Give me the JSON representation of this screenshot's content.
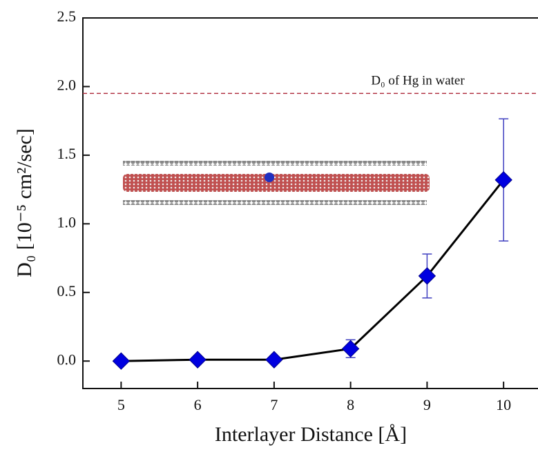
{
  "chart_data": {
    "type": "line",
    "x_label": "Interlayer Distance [Å]",
    "y_label": "D₀ [10⁻⁵ cm²/sec]",
    "x": [
      5,
      6,
      7,
      8,
      9,
      10
    ],
    "series": [
      {
        "color": "#0000e0",
        "values": [
          0.0,
          0.01,
          0.01,
          0.09,
          0.62,
          1.32
        ],
        "errors": [
          0,
          0,
          0,
          0.065,
          0.16,
          0.445
        ]
      }
    ],
    "reference_line": {
      "value": 1.95,
      "label": "D₀ of Hg in water",
      "color": "#b03040"
    },
    "xlim": [
      4.5,
      10.45
    ],
    "ylim": [
      -0.2,
      2.5
    ],
    "xticks": [
      5,
      6,
      7,
      8,
      9,
      10
    ],
    "yticks": [
      {
        "value": 0,
        "label": "0.0"
      },
      0.5,
      {
        "value": 1,
        "label": "1.0"
      },
      1.5,
      {
        "value": 2,
        "label": "2.0"
      },
      2.5
    ]
  }
}
